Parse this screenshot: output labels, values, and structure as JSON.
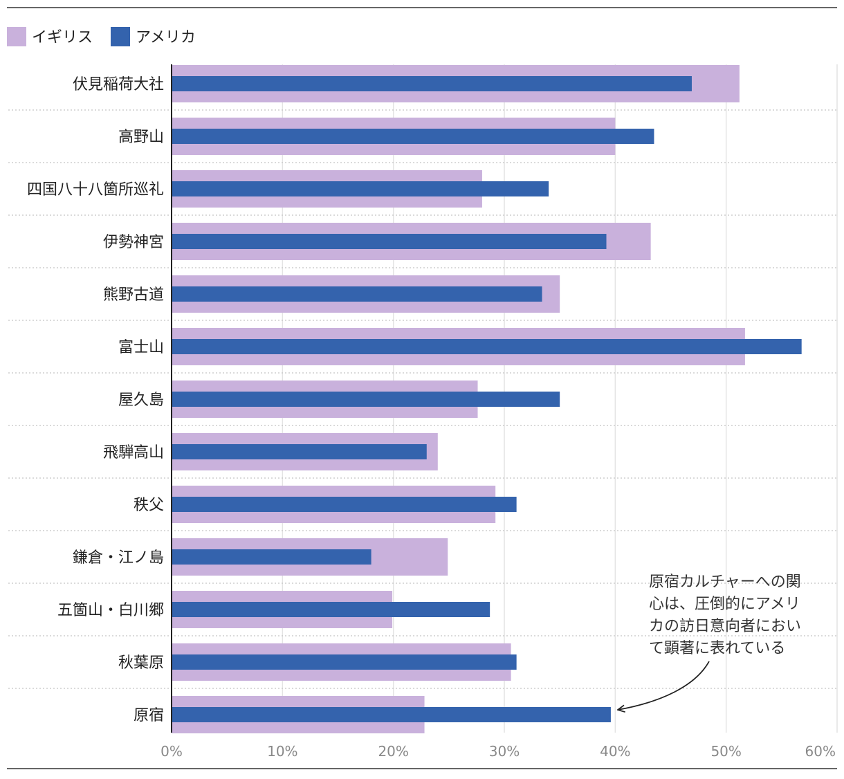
{
  "chart_data": {
    "type": "bar",
    "orientation": "horizontal",
    "title": "",
    "xlabel": "",
    "ylabel": "",
    "xlim": [
      0,
      60
    ],
    "xticks": [
      "0%",
      "10%",
      "20%",
      "30%",
      "40%",
      "50%",
      "60%"
    ],
    "categories": [
      "伏見稲荷大社",
      "高野山",
      "四国八十八箇所巡礼",
      "伊勢神宮",
      "熊野古道",
      "富士山",
      "屋久島",
      "飛騨高山",
      "秩父",
      "鎌倉・江ノ島",
      "五箇山・白川郷",
      "秋葉原",
      "原宿"
    ],
    "series": [
      {
        "name": "イギリス",
        "color": "#c9b1dc",
        "values": [
          51.2,
          40.0,
          28.0,
          43.2,
          35.0,
          51.7,
          27.6,
          24.0,
          29.2,
          24.9,
          19.9,
          30.6,
          22.8
        ]
      },
      {
        "name": "アメリカ",
        "color": "#3463ad",
        "values": [
          46.9,
          43.5,
          34.0,
          39.2,
          33.4,
          56.8,
          35.0,
          23.0,
          31.1,
          18.0,
          28.7,
          31.1,
          39.6
        ]
      }
    ],
    "legend_position": "top-left",
    "grid": true,
    "annotation": {
      "lines": [
        "原宿カルチャーへの関",
        "心は、圧倒的にアメリ",
        "カの訪日意向者におい",
        "て顕著に表れている"
      ],
      "target_category": "原宿",
      "target_series": "アメリカ"
    }
  }
}
